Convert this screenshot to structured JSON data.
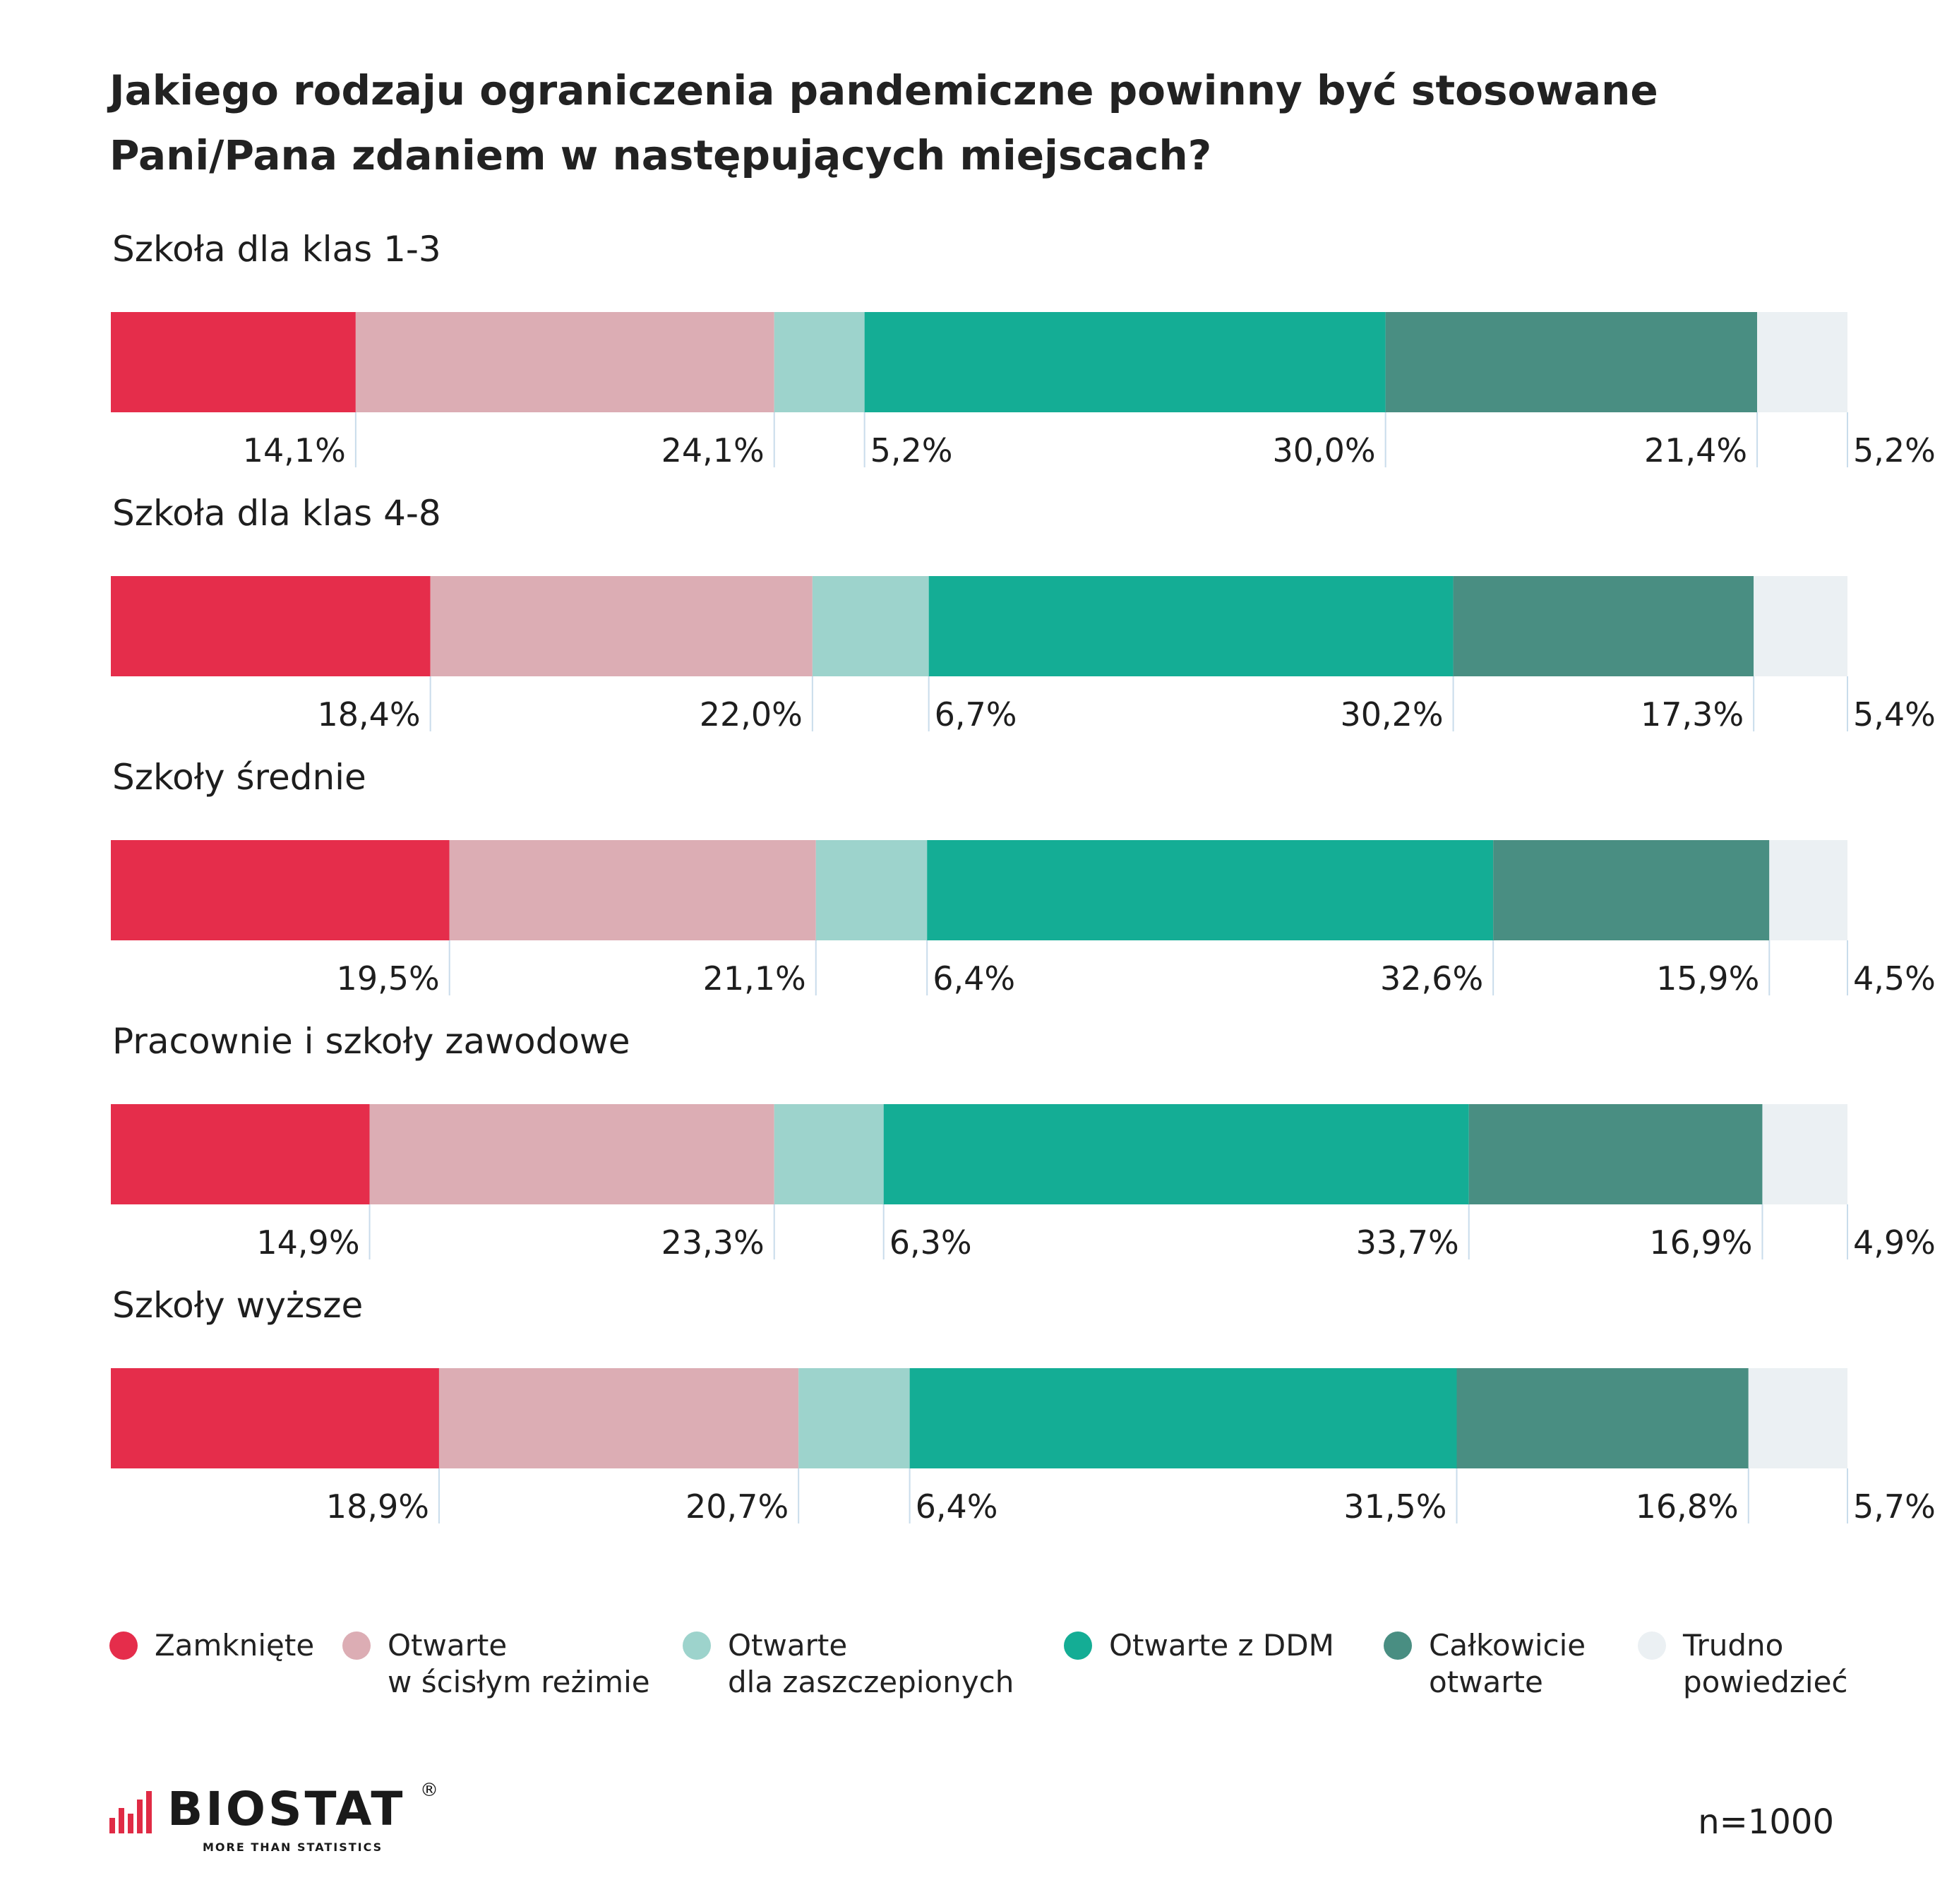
{
  "title": "Jakiego rodzaju ograniczenia pandemiczne powinny być stosowane Pani/Pana zdaniem w następujących miejscach?",
  "legend": [
    {
      "lines": [
        "Zamknięte"
      ],
      "color": "#e52d4b"
    },
    {
      "lines": [
        "Otwarte",
        "w ścisłym reżimie"
      ],
      "color": "#dcadb4"
    },
    {
      "lines": [
        "Otwarte",
        "dla zaszczepionych"
      ],
      "color": "#9dd3cc"
    },
    {
      "lines": [
        "Otwarte z DDM"
      ],
      "color": "#14ad95"
    },
    {
      "lines": [
        "Całkowicie",
        "otwarte"
      ],
      "color": "#498e82"
    },
    {
      "lines": [
        "Trudno",
        "powiedzieć"
      ],
      "color": "#ebf0f3"
    }
  ],
  "chart_data": {
    "type": "bar",
    "orientation": "horizontal",
    "stacked": true,
    "categories": [
      "Szkoła dla klas 1-3",
      "Szkoła dla klas 4-8",
      "Szkoły średnie",
      "Pracownie i szkoły zawodowe",
      "Szkoły wyższe"
    ],
    "series": [
      {
        "name": "Zamknięte",
        "color": "#e52d4b",
        "values": [
          14.1,
          18.4,
          19.5,
          14.9,
          18.9
        ],
        "labels": [
          "14,1%",
          "18,4%",
          "19,5%",
          "14,9%",
          "18,9%"
        ]
      },
      {
        "name": "Otwarte w ścisłym reżimie",
        "color": "#dcadb4",
        "values": [
          24.1,
          22.0,
          21.1,
          23.3,
          20.7
        ],
        "labels": [
          "24,1%",
          "22,0%",
          "21,1%",
          "23,3%",
          "20,7%"
        ]
      },
      {
        "name": "Otwarte dla zaszczepionych",
        "color": "#9dd3cc",
        "values": [
          5.2,
          6.7,
          6.4,
          6.3,
          6.4
        ],
        "labels": [
          "5,2%",
          "6,7%",
          "6,4%",
          "6,3%",
          "6,4%"
        ]
      },
      {
        "name": "Otwarte z DDM",
        "color": "#14ad95",
        "values": [
          30.0,
          30.2,
          32.6,
          33.7,
          31.5
        ],
        "labels": [
          "30,0%",
          "30,2%",
          "32,6%",
          "33,7%",
          "31,5%"
        ]
      },
      {
        "name": "Całkowicie otwarte",
        "color": "#498e82",
        "values": [
          21.4,
          17.3,
          15.9,
          16.9,
          16.8
        ],
        "labels": [
          "21,4%",
          "17,3%",
          "15,9%",
          "16,9%",
          "16,8%"
        ]
      },
      {
        "name": "Trudno powiedzieć",
        "color": "#ebf0f3",
        "values": [
          5.2,
          5.4,
          4.5,
          4.9,
          5.7
        ],
        "labels": [
          "5,2%",
          "5,4%",
          "4,5%",
          "4,9%",
          "5,7%"
        ]
      }
    ],
    "xlim": [
      0,
      100
    ]
  },
  "logo": {
    "name": "BIOSTAT",
    "tagline": "MORE THAN STATISTICS",
    "mark": "®"
  },
  "sample": "n=1000"
}
